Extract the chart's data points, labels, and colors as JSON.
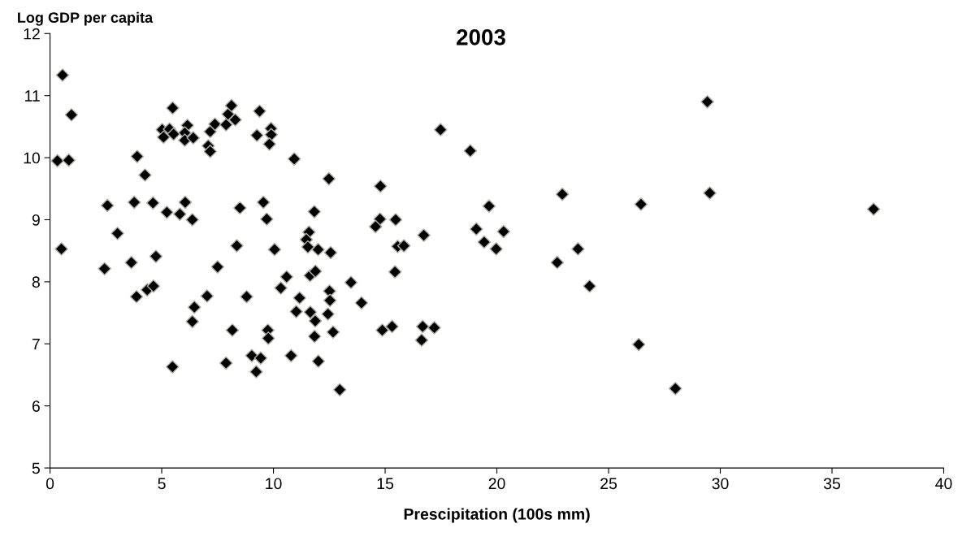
{
  "chart_data": {
    "type": "scatter",
    "title": "2003",
    "xlabel": "Prescipitation (100s mm)",
    "ylabel": "Log GDP per capita",
    "xlim": [
      0,
      40
    ],
    "xticks": [
      0,
      5,
      10,
      15,
      20,
      25,
      30,
      35,
      40
    ],
    "ylim": [
      5,
      12
    ],
    "yticks": [
      5,
      6,
      7,
      8,
      9,
      10,
      11,
      12
    ],
    "marker": "diamond",
    "series": [
      {
        "color": "#000000",
        "x": [
          0.56,
          0.96,
          0.33,
          0.84,
          0.51,
          5.49,
          5.02,
          5.08,
          5.35,
          5.53,
          6.15,
          6.03,
          6.03,
          6.41,
          7.17,
          7.38,
          7.08,
          7.17,
          7.88,
          7.97,
          8.12,
          8.29,
          9.38,
          9.26,
          9.89,
          9.9,
          9.82,
          10.93,
          12.48,
          3.9,
          4.25,
          2.57,
          3.77,
          4.61,
          6.05,
          5.23,
          5.81,
          6.37,
          8.5,
          9.55,
          9.7,
          11.83,
          3.02,
          8.36,
          10.05,
          11.59,
          11.47,
          11.54,
          12.0,
          12.56,
          3.64,
          2.44,
          4.74,
          7.5,
          10.59,
          11.64,
          11.88,
          13.47,
          3.87,
          4.35,
          4.63,
          7.03,
          8.8,
          10.33,
          11.17,
          12.51,
          12.53,
          13.94,
          6.46,
          6.37,
          11.02,
          11.65,
          11.87,
          12.44,
          8.16,
          9.75,
          9.77,
          11.84,
          12.67,
          10.79,
          9.03,
          9.43,
          12.01,
          5.48,
          7.88,
          9.23,
          12.97,
          17.48,
          18.81,
          14.79,
          14.77,
          14.57,
          15.47,
          16.73,
          15.56,
          15.84,
          15.44,
          19.65,
          19.08,
          20.3,
          19.43,
          19.97,
          22.93,
          26.45,
          23.63,
          22.7,
          24.15,
          26.35,
          14.87,
          15.31,
          16.68,
          17.2,
          16.63,
          29.42,
          29.53,
          36.86,
          27.99
        ],
        "values": [
          11.33,
          10.69,
          9.95,
          9.96,
          8.53,
          10.8,
          10.45,
          10.33,
          10.46,
          10.38,
          10.52,
          10.4,
          10.28,
          10.32,
          10.42,
          10.54,
          10.19,
          10.1,
          10.53,
          10.7,
          10.84,
          10.61,
          10.75,
          10.36,
          10.47,
          10.37,
          10.22,
          9.98,
          9.66,
          10.02,
          9.72,
          9.23,
          9.28,
          9.27,
          9.28,
          9.12,
          9.09,
          9.0,
          9.19,
          9.28,
          9.01,
          9.13,
          8.78,
          8.58,
          8.52,
          8.8,
          8.68,
          8.56,
          8.52,
          8.47,
          8.31,
          8.21,
          8.41,
          8.24,
          8.08,
          8.1,
          8.17,
          7.99,
          7.76,
          7.87,
          7.93,
          7.77,
          7.76,
          7.9,
          7.74,
          7.85,
          7.7,
          7.66,
          7.59,
          7.36,
          7.52,
          7.51,
          7.37,
          7.48,
          7.22,
          7.22,
          7.09,
          7.12,
          7.19,
          6.81,
          6.81,
          6.77,
          6.72,
          6.63,
          6.69,
          6.55,
          6.26,
          10.45,
          10.11,
          9.54,
          9.01,
          8.89,
          9.0,
          8.75,
          8.57,
          8.58,
          8.16,
          9.22,
          8.85,
          8.81,
          8.64,
          8.53,
          9.41,
          9.25,
          8.53,
          8.31,
          7.93,
          6.99,
          7.22,
          7.28,
          7.28,
          7.26,
          7.06,
          10.9,
          9.43,
          9.17,
          6.28
        ]
      }
    ]
  }
}
